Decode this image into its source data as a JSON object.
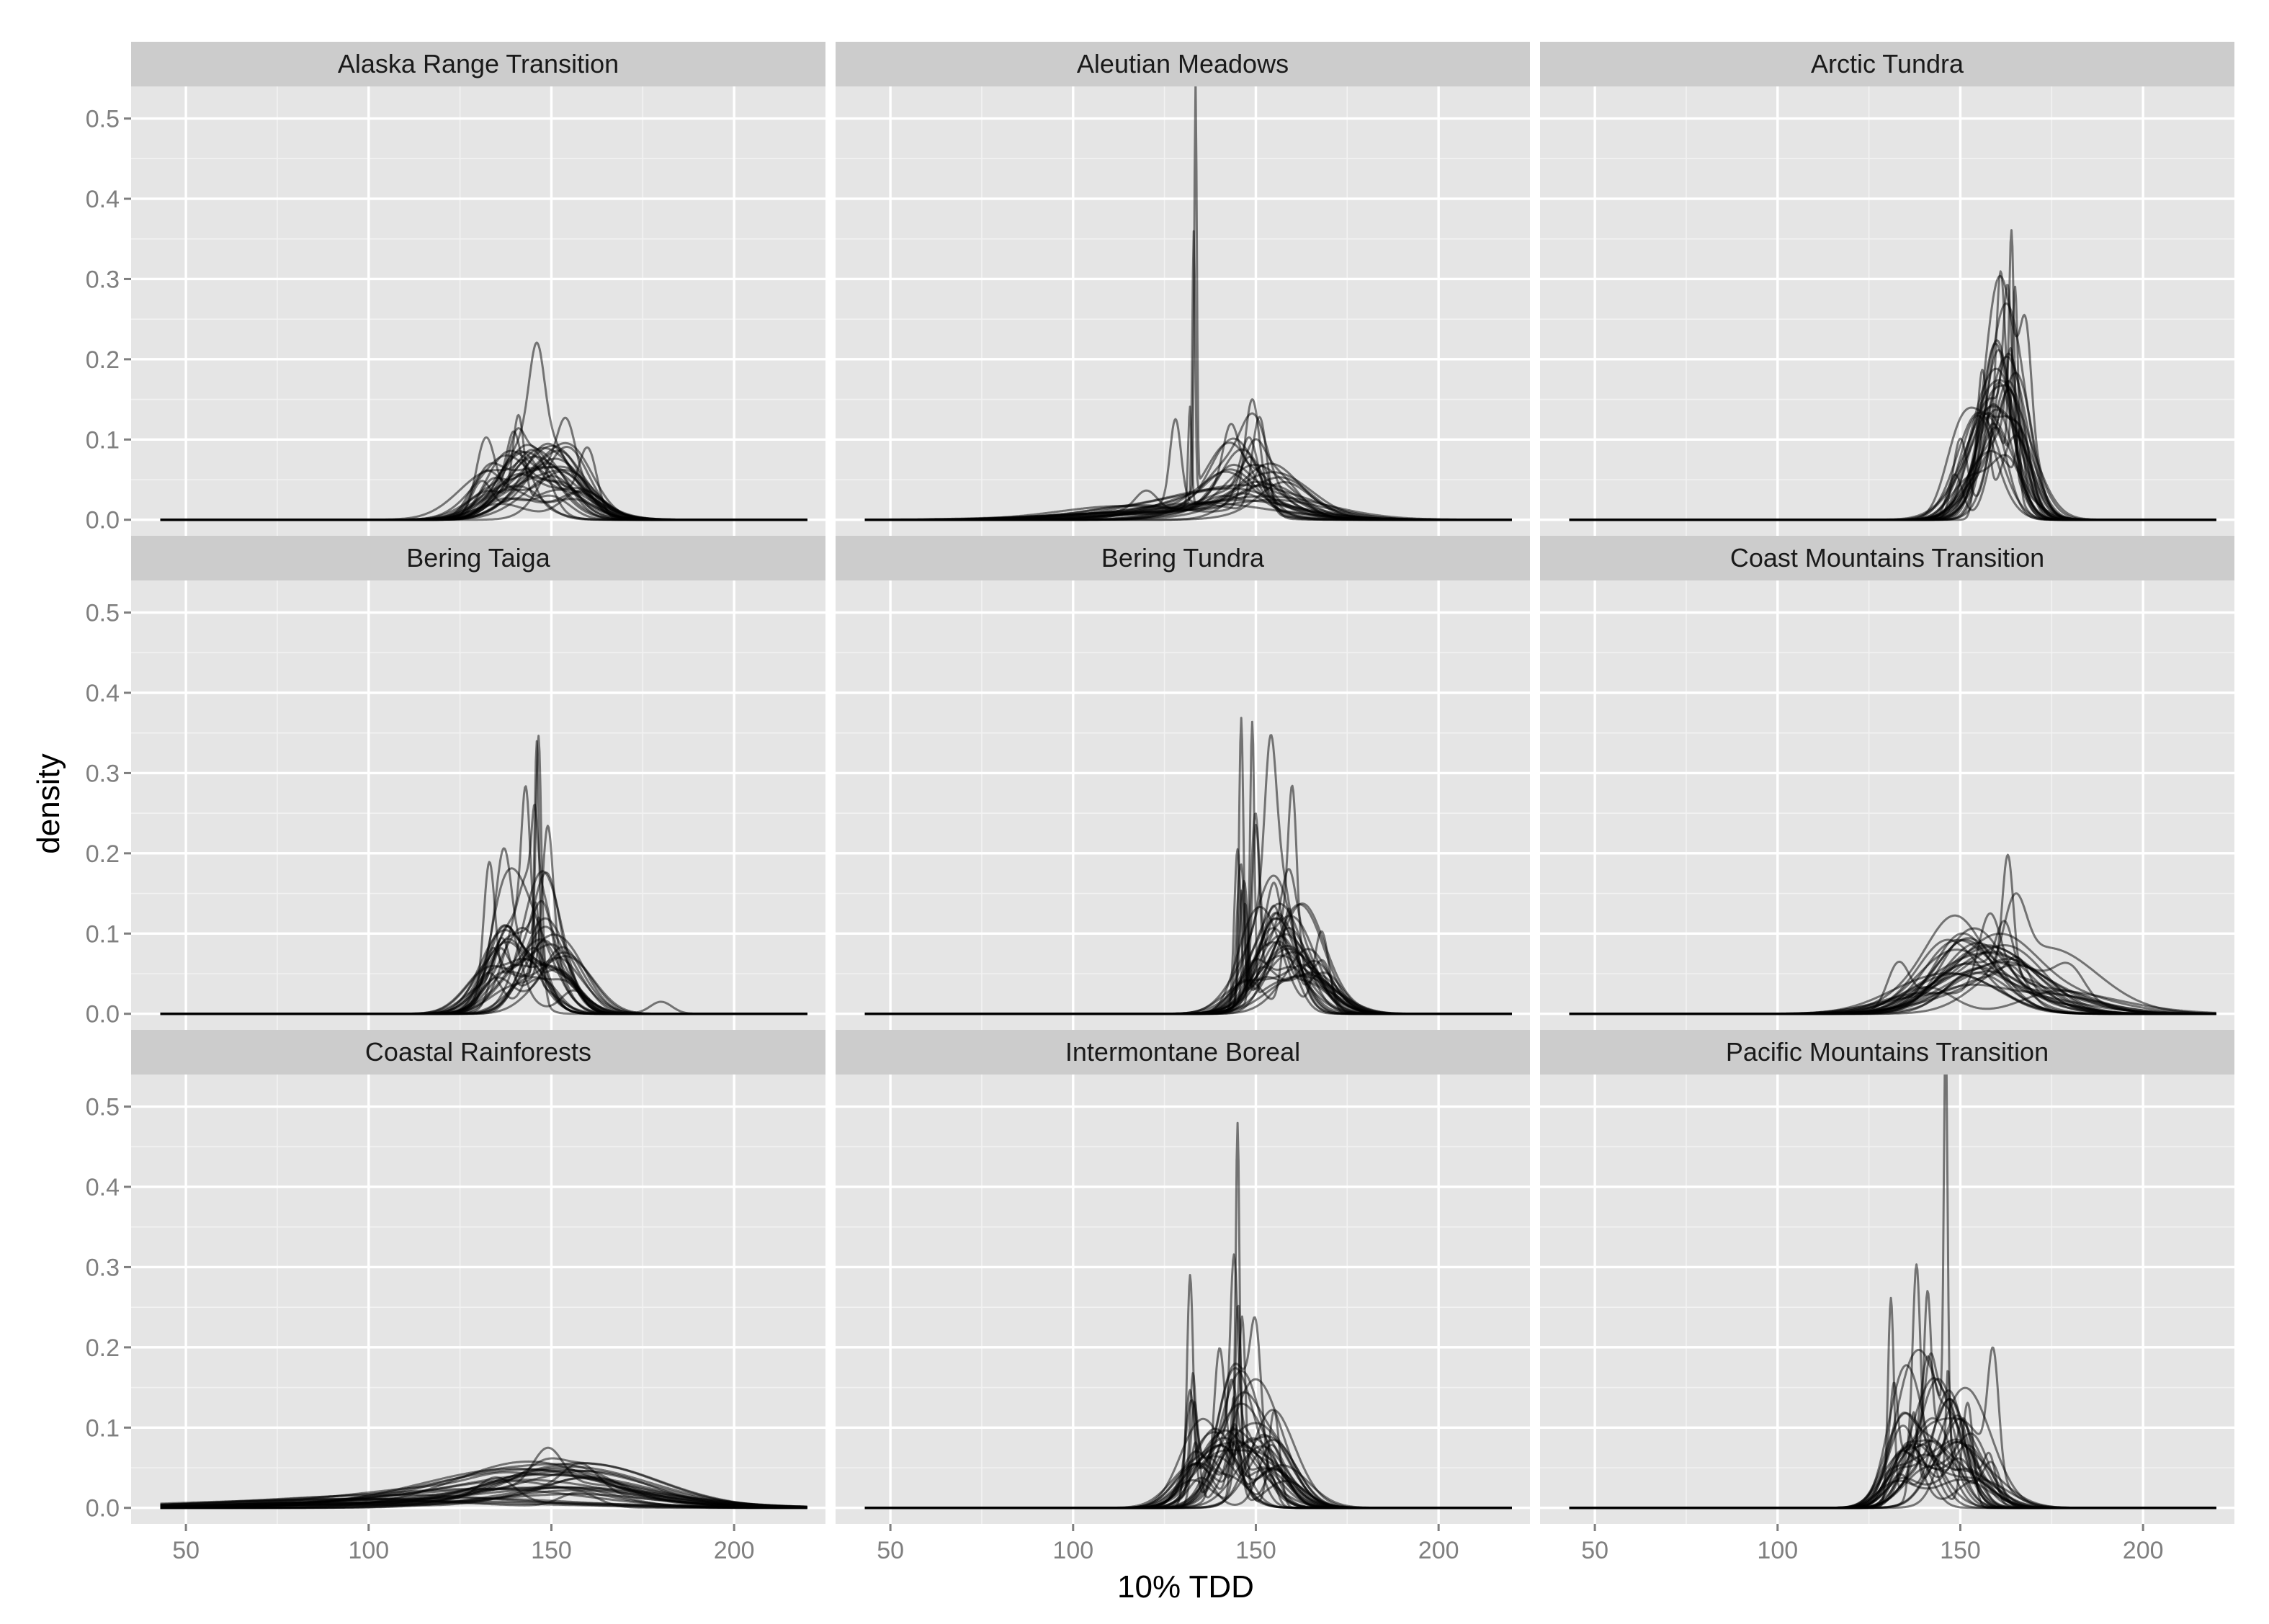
{
  "chart_data": {
    "type": "line",
    "kind": "faceted density curves (many overlaid semi-transparent series per panel)",
    "xlabel": "10% TDD",
    "ylabel": "density",
    "xlim": [
      35,
      225
    ],
    "ylim": [
      -0.02,
      0.54
    ],
    "x_ticks": [
      50,
      100,
      150,
      200
    ],
    "x_tick_labels": [
      "50",
      "100",
      "150",
      "200"
    ],
    "y_ticks": [
      0.0,
      0.1,
      0.2,
      0.3,
      0.4,
      0.5
    ],
    "y_tick_labels": [
      "0.0",
      "0.1",
      "0.2",
      "0.3",
      "0.4",
      "0.5"
    ],
    "x_range_of_curves": [
      43,
      220
    ],
    "grid": "on",
    "panel_background": "#e5e5e5",
    "strip_background": "#cccccc",
    "line_color": "#000000",
    "line_opacity": 0.5,
    "layout": "3 x 3 facet grid, shared axes",
    "panels": [
      {
        "title": "Alaska Range Transition",
        "series_count": 32,
        "main_peaks": [
          {
            "x": 140,
            "width": 6,
            "height": 0.03
          },
          {
            "x": 145,
            "width": 8,
            "height": 0.04
          },
          {
            "x": 150,
            "width": 7,
            "height": 0.035
          },
          {
            "x": 135,
            "width": 7,
            "height": 0.03
          },
          {
            "x": 155,
            "width": 6,
            "height": 0.03
          },
          {
            "x": 148,
            "width": 10,
            "height": 0.04
          }
        ],
        "spikes": [
          {
            "x": 132,
            "width": 2.5,
            "height": 0.085
          },
          {
            "x": 141,
            "width": 1.5,
            "height": 0.105
          },
          {
            "x": 146,
            "width": 2,
            "height": 0.104
          },
          {
            "x": 154,
            "width": 2.5,
            "height": 0.07
          },
          {
            "x": 160,
            "width": 2.5,
            "height": 0.08
          }
        ]
      },
      {
        "title": "Aleutian Meadows",
        "series_count": 28,
        "main_peaks": [
          {
            "x": 150,
            "width": 12,
            "height": 0.02
          },
          {
            "x": 135,
            "width": 14,
            "height": 0.015
          },
          {
            "x": 145,
            "width": 6,
            "height": 0.04
          },
          {
            "x": 155,
            "width": 8,
            "height": 0.03
          },
          {
            "x": 125,
            "width": 20,
            "height": 0.01
          }
        ],
        "spikes": [
          {
            "x": 133.5,
            "width": 0.35,
            "height": 0.507
          },
          {
            "x": 133,
            "width": 0.4,
            "height": 0.33
          },
          {
            "x": 128,
            "width": 1.5,
            "height": 0.105
          },
          {
            "x": 149,
            "width": 2,
            "height": 0.13
          },
          {
            "x": 151,
            "width": 2,
            "height": 0.12
          },
          {
            "x": 143,
            "width": 2,
            "height": 0.06
          },
          {
            "x": 120,
            "width": 3,
            "height": 0.025
          }
        ]
      },
      {
        "title": "Arctic Tundra",
        "series_count": 30,
        "main_peaks": [
          {
            "x": 160,
            "width": 4,
            "height": 0.08
          },
          {
            "x": 162,
            "width": 5,
            "height": 0.1
          },
          {
            "x": 158,
            "width": 6,
            "height": 0.06
          },
          {
            "x": 165,
            "width": 4,
            "height": 0.09
          },
          {
            "x": 155,
            "width": 5,
            "height": 0.05
          }
        ],
        "spikes": [
          {
            "x": 164,
            "width": 0.7,
            "height": 0.29
          },
          {
            "x": 165,
            "width": 0.8,
            "height": 0.24
          },
          {
            "x": 156,
            "width": 1.5,
            "height": 0.18
          },
          {
            "x": 161,
            "width": 1.2,
            "height": 0.2
          },
          {
            "x": 163,
            "width": 1.2,
            "height": 0.18
          },
          {
            "x": 150,
            "width": 2,
            "height": 0.1
          },
          {
            "x": 168,
            "width": 1.5,
            "height": 0.12
          }
        ]
      },
      {
        "title": "Bering Taiga",
        "series_count": 32,
        "main_peaks": [
          {
            "x": 145,
            "width": 5,
            "height": 0.06
          },
          {
            "x": 140,
            "width": 6,
            "height": 0.05
          },
          {
            "x": 150,
            "width": 6,
            "height": 0.05
          },
          {
            "x": 135,
            "width": 5,
            "height": 0.045
          },
          {
            "x": 155,
            "width": 5,
            "height": 0.04
          }
        ],
        "spikes": [
          {
            "x": 146,
            "width": 0.6,
            "height": 0.29
          },
          {
            "x": 146.5,
            "width": 0.7,
            "height": 0.27
          },
          {
            "x": 133,
            "width": 1.5,
            "height": 0.155
          },
          {
            "x": 143,
            "width": 1.2,
            "height": 0.17
          },
          {
            "x": 149,
            "width": 1.5,
            "height": 0.18
          },
          {
            "x": 137,
            "width": 2,
            "height": 0.12
          },
          {
            "x": 180,
            "width": 3,
            "height": 0.015
          }
        ]
      },
      {
        "title": "Bering Tundra",
        "series_count": 32,
        "main_peaks": [
          {
            "x": 155,
            "width": 5,
            "height": 0.07
          },
          {
            "x": 150,
            "width": 5,
            "height": 0.06
          },
          {
            "x": 160,
            "width": 6,
            "height": 0.05
          },
          {
            "x": 158,
            "width": 7,
            "height": 0.04
          },
          {
            "x": 165,
            "width": 6,
            "height": 0.04
          }
        ],
        "spikes": [
          {
            "x": 146,
            "width": 0.6,
            "height": 0.35
          },
          {
            "x": 149,
            "width": 0.6,
            "height": 0.345
          },
          {
            "x": 150,
            "width": 1,
            "height": 0.2
          },
          {
            "x": 160,
            "width": 1.2,
            "height": 0.2
          },
          {
            "x": 154,
            "width": 1.5,
            "height": 0.16
          },
          {
            "x": 168,
            "width": 2,
            "height": 0.1
          }
        ]
      },
      {
        "title": "Coast Mountains Transition",
        "series_count": 30,
        "main_peaks": [
          {
            "x": 155,
            "width": 10,
            "height": 0.04
          },
          {
            "x": 160,
            "width": 12,
            "height": 0.035
          },
          {
            "x": 150,
            "width": 9,
            "height": 0.04
          },
          {
            "x": 170,
            "width": 14,
            "height": 0.025
          },
          {
            "x": 145,
            "width": 10,
            "height": 0.03
          }
        ],
        "spikes": [
          {
            "x": 163,
            "width": 1.5,
            "height": 0.15
          },
          {
            "x": 133,
            "width": 3,
            "height": 0.055
          },
          {
            "x": 158,
            "width": 3,
            "height": 0.09
          },
          {
            "x": 165,
            "width": 3,
            "height": 0.08
          },
          {
            "x": 180,
            "width": 4,
            "height": 0.035
          }
        ]
      },
      {
        "title": "Coastal Rainforests",
        "series_count": 30,
        "main_peaks": [
          {
            "x": 140,
            "width": 25,
            "height": 0.015
          },
          {
            "x": 150,
            "width": 20,
            "height": 0.02
          },
          {
            "x": 120,
            "width": 35,
            "height": 0.008
          },
          {
            "x": 155,
            "width": 18,
            "height": 0.02
          },
          {
            "x": 90,
            "width": 30,
            "height": 0.004
          }
        ],
        "spikes": [
          {
            "x": 149,
            "width": 4,
            "height": 0.045
          },
          {
            "x": 135,
            "width": 5,
            "height": 0.03
          },
          {
            "x": 158,
            "width": 5,
            "height": 0.035
          }
        ]
      },
      {
        "title": "Intermontane Boreal",
        "series_count": 34,
        "main_peaks": [
          {
            "x": 140,
            "width": 6,
            "height": 0.06
          },
          {
            "x": 145,
            "width": 5,
            "height": 0.07
          },
          {
            "x": 150,
            "width": 6,
            "height": 0.06
          },
          {
            "x": 135,
            "width": 5,
            "height": 0.05
          },
          {
            "x": 155,
            "width": 6,
            "height": 0.05
          }
        ],
        "spikes": [
          {
            "x": 145,
            "width": 0.5,
            "height": 0.4
          },
          {
            "x": 132,
            "width": 0.8,
            "height": 0.257
          },
          {
            "x": 144,
            "width": 1,
            "height": 0.22
          },
          {
            "x": 140,
            "width": 1.5,
            "height": 0.17
          },
          {
            "x": 155,
            "width": 1.5,
            "height": 0.12
          },
          {
            "x": 150,
            "width": 1.5,
            "height": 0.14
          }
        ]
      },
      {
        "title": "Pacific Mountains Transition",
        "series_count": 32,
        "main_peaks": [
          {
            "x": 138,
            "width": 5,
            "height": 0.06
          },
          {
            "x": 143,
            "width": 5,
            "height": 0.07
          },
          {
            "x": 148,
            "width": 5,
            "height": 0.06
          },
          {
            "x": 133,
            "width": 4,
            "height": 0.05
          },
          {
            "x": 153,
            "width": 6,
            "height": 0.04
          }
        ],
        "spikes": [
          {
            "x": 146,
            "width": 0.5,
            "height": 0.49
          },
          {
            "x": 131,
            "width": 0.8,
            "height": 0.253
          },
          {
            "x": 138,
            "width": 1,
            "height": 0.225
          },
          {
            "x": 141,
            "width": 1,
            "height": 0.2
          },
          {
            "x": 159,
            "width": 1.5,
            "height": 0.145
          },
          {
            "x": 152,
            "width": 1.5,
            "height": 0.13
          }
        ]
      }
    ]
  }
}
